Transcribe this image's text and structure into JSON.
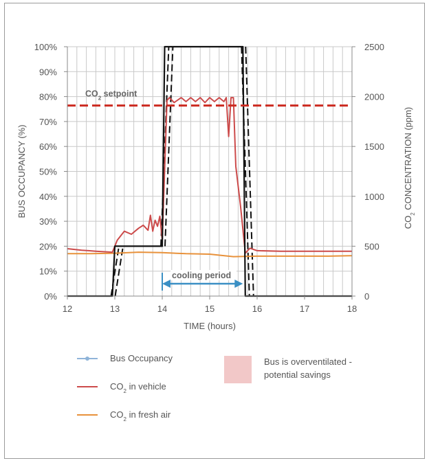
{
  "chart_data": {
    "type": "line",
    "xlabel": "TIME (hours)",
    "ylabel_left": "BUS OCCUPANCY (%)",
    "ylabel_right_prefix": "CO",
    "ylabel_right_sub": "2",
    "ylabel_right_suffix": " CONCENTRATION (ppm)",
    "xlim": [
      12,
      18
    ],
    "ylim_left": [
      0,
      100
    ],
    "ylim_right": [
      0,
      2500
    ],
    "x_ticks": [
      "12",
      "13",
      "14",
      "15",
      "16",
      "17",
      "18"
    ],
    "y_left_ticks": [
      "0%",
      "10%",
      "20%",
      "30%",
      "40%",
      "50%",
      "60%",
      "70%",
      "80%",
      "90%",
      "100%"
    ],
    "y_right_ticks": [
      "0",
      "500",
      "1000",
      "1500",
      "2000",
      "2500"
    ],
    "grid": true,
    "colors": {
      "occupancy": "#111111",
      "co2_vehicle": "#cc4a4a",
      "co2_fresh": "#e8913a",
      "setpoint": "#cc2a20",
      "cooling_arrow": "#3a8fc4",
      "overventilated": "#f2c8c8"
    },
    "series": [
      {
        "name": "Bus Occupancy",
        "axis": "left",
        "x": [
          12.0,
          12.95,
          13.0,
          14.0,
          14.05,
          15.7,
          15.75,
          18.0
        ],
        "y": [
          0,
          0,
          20,
          20,
          100,
          100,
          0,
          0
        ]
      },
      {
        "name": "CO₂ in vehicle",
        "axis": "right",
        "x": [
          12.0,
          12.3,
          12.6,
          12.95,
          13.05,
          13.2,
          13.35,
          13.5,
          13.6,
          13.7,
          13.75,
          13.8,
          13.85,
          13.9,
          13.95,
          14.0,
          14.1,
          14.15,
          14.25,
          14.4,
          14.5,
          14.6,
          14.7,
          14.8,
          14.9,
          15.0,
          15.1,
          15.2,
          15.3,
          15.35,
          15.4,
          15.45,
          15.5,
          15.55,
          15.65,
          15.75,
          15.85,
          16.0,
          16.5,
          17.0,
          17.5,
          18.0
        ],
        "y": [
          475,
          460,
          450,
          440,
          560,
          650,
          620,
          680,
          710,
          660,
          810,
          650,
          760,
          700,
          800,
          560,
          1960,
          1990,
          1940,
          1990,
          1950,
          1990,
          1950,
          1990,
          1940,
          1990,
          1950,
          1990,
          1950,
          1990,
          1600,
          1990,
          1990,
          1300,
          900,
          430,
          480,
          455,
          450,
          450,
          450,
          450
        ]
      },
      {
        "name": "CO₂ in fresh air",
        "axis": "right",
        "x": [
          12.0,
          12.5,
          13.0,
          13.5,
          14.0,
          14.5,
          15.0,
          15.5,
          16.0,
          16.5,
          17.0,
          17.5,
          18.0
        ],
        "y": [
          425,
          425,
          430,
          440,
          435,
          425,
          420,
          395,
          400,
          400,
          400,
          400,
          405
        ]
      }
    ],
    "setpoint": {
      "label_prefix": "CO",
      "label_sub": "2",
      "label_suffix": " setpoint",
      "value": 1910
    },
    "cooling_period": {
      "label": "cooling period",
      "start": 14.0,
      "end": 15.7
    },
    "legend": {
      "occupancy": "Bus Occupancy",
      "co2_vehicle_prefix": "CO",
      "co2_vehicle_sub": "2",
      "co2_vehicle_suffix": " in vehicle",
      "co2_fresh_prefix": "CO",
      "co2_fresh_sub": "2",
      "co2_fresh_suffix": " in fresh air",
      "overventilated_line1": "Bus is overventilated -",
      "overventilated_line2": "potential savings"
    }
  }
}
